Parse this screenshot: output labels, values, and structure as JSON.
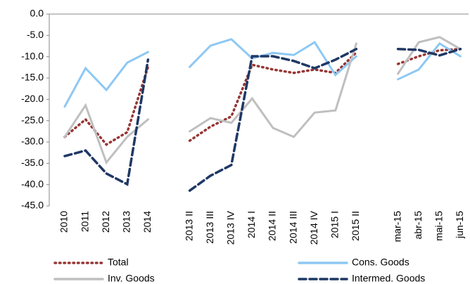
{
  "chart_data": {
    "type": "line",
    "categories": [
      "2010",
      "2011",
      "2012",
      "2013",
      "2014",
      null,
      "2013 II",
      "2013 III",
      "2013 IV",
      "2014 I",
      "2014 II",
      "2014 III",
      "2014 IV",
      "2015 I",
      "2015 II",
      null,
      "mar-15",
      "abr-15",
      "mai-15",
      "jun-15"
    ],
    "series": [
      {
        "name": "Total",
        "color": "#963634",
        "style": "dotted",
        "values": [
          -28.8,
          -24.7,
          -30.6,
          -27.7,
          -12.4,
          null,
          -29.7,
          -26.4,
          -24.0,
          -11.9,
          -13.0,
          -13.8,
          -13.0,
          -13.8,
          -9.0,
          null,
          -11.7,
          -9.9,
          -8.5,
          -8.2
        ]
      },
      {
        "name": "Cons. Goods",
        "color": "#8ec8f4",
        "style": "solid",
        "values": [
          -21.7,
          -12.7,
          -17.8,
          -11.4,
          -8.9,
          null,
          -12.4,
          -7.4,
          -5.9,
          -10.4,
          -9.1,
          -9.6,
          -6.6,
          -14.3,
          -9.9,
          null,
          -15.3,
          -13.0,
          -6.9,
          -9.9
        ]
      },
      {
        "name": "Inv. Goods",
        "color": "#bfbfbf",
        "style": "solid",
        "values": [
          -28.8,
          -21.4,
          -34.8,
          -28.8,
          -24.7,
          null,
          -27.5,
          -24.4,
          -25.5,
          -19.8,
          -26.7,
          -28.8,
          -23.1,
          -22.6,
          -6.9,
          null,
          -14.0,
          -6.6,
          -5.4,
          -8.2
        ]
      },
      {
        "name": "Intermed. Goods",
        "color": "#1f3864",
        "style": "dashed",
        "values": [
          -33.3,
          -32.0,
          -37.4,
          -39.9,
          -10.7,
          null,
          -41.4,
          -37.9,
          -35.4,
          -9.9,
          -9.9,
          -11.0,
          -12.7,
          -10.7,
          -8.2,
          null,
          -8.2,
          -8.4,
          -9.7,
          -8.2
        ]
      }
    ],
    "ylim": [
      -45,
      0
    ],
    "yticks": [
      {
        "value": 0,
        "label": "0.0"
      },
      {
        "value": -5,
        "label": "-5.0"
      },
      {
        "value": -10,
        "label": "-10.0"
      },
      {
        "value": -15,
        "label": "-15.0"
      },
      {
        "value": -20,
        "label": "-20.0"
      },
      {
        "value": -25,
        "label": "-25.0"
      },
      {
        "value": -30,
        "label": "-30.0"
      },
      {
        "value": -35,
        "label": "-35.0"
      },
      {
        "value": -40,
        "label": "-40.0"
      },
      {
        "value": -45,
        "label": "-45.0"
      }
    ],
    "legend": "bottom"
  }
}
